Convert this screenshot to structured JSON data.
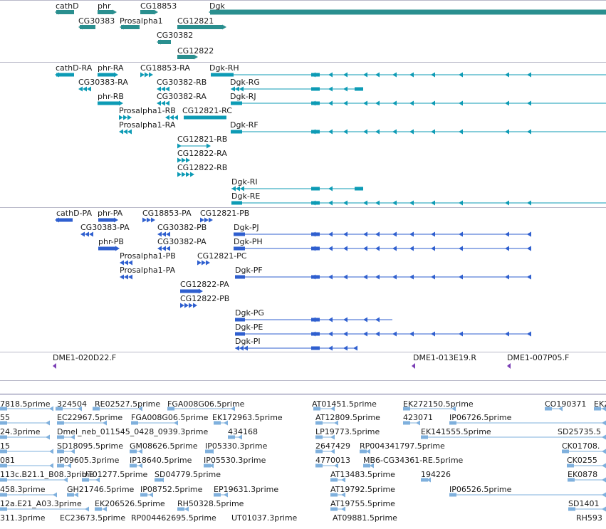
{
  "colors": {
    "gene": "#2a8f8f",
    "transcript": "#0d9bb5",
    "protein": "#2f5fcf",
    "clone": "#7b3fb5",
    "est": "#7fb0dd",
    "separator": "#b9b9c9"
  },
  "genes": [
    "cathD",
    "phr",
    "CG18853",
    "Dgk",
    "CG30383",
    "Prosalpha1",
    "CG12821",
    "CG30382",
    "CG12822"
  ],
  "transcripts": [
    "cathD-RA",
    "phr-RA",
    "CG18853-RA",
    "Dgk-RH",
    "CG30383-RA",
    "CG30382-RB",
    "Dgk-RG",
    "phr-RB",
    "CG30382-RA",
    "Dgk-RJ",
    "Prosalpha1-RB",
    "CG12821-RC",
    "Prosalpha1-RA",
    "Dgk-RF",
    "CG12821-RB",
    "CG12822-RA",
    "CG12822-RB",
    "Dgk-RI",
    "Dgk-RE"
  ],
  "proteins": [
    "cathD-PA",
    "phr-PA",
    "CG18853-PA",
    "CG12821-PB",
    "CG30383-PA",
    "CG30382-PB",
    "Dgk-PJ",
    "phr-PB",
    "CG30382-PA",
    "Dgk-PH",
    "Prosalpha1-PB",
    "CG12821-PC",
    "Prosalpha1-PA",
    "Dgk-PF",
    "CG12822-PA",
    "CG12822-PB",
    "Dgk-PG",
    "Dgk-PE",
    "Dgk-PI"
  ],
  "clones": [
    "DME1-020D22.F",
    "DME1-013E19.R",
    "DME1-007P05.F"
  ],
  "ests": [
    "7818.5prime",
    "324504",
    "RE02527.5prime",
    "FGA008G06.5prime",
    "AT01451.5prime",
    "EK272150.5prime",
    "CO190371",
    "EK2",
    "55",
    "EC22967.5prime",
    "FGA008G06.5prime",
    "EK172963.5prime",
    "AT12809.5prime",
    "423071",
    "IP06726.5prime",
    "24.3prime",
    "Dmel_neb_011545_0428_0939.3prime",
    "434168",
    "LP19773.5prime",
    "EK141555.5prime",
    "SD25735.5",
    "15",
    "SD18095.5prime",
    "GM08626.5prime",
    "IP05330.3prime",
    "2647429",
    "RP004341797.5prime",
    "CK01708.",
    "081",
    "IP09605.3prime",
    "IP18640.5prime",
    "IP05530.3prime",
    "4770013",
    "MB6-CG34361-RE.5prime",
    "CK0255",
    "113c.B21.1_B08.3prime",
    "UT01277.5prime",
    "SD04779.5prime",
    "AT13483.5prime",
    "194226",
    "EK0878",
    "458.3prime",
    "GH21746.5prime",
    "IP08752.5prime",
    "EP19631.3prime",
    "AT19792.5prime",
    "IP06526.5prime",
    "12a.E21_A03.3prime",
    "EK206526.5prime",
    "RH50328.5prime",
    "AT19755.5prime",
    "SD1401",
    "311.3prime",
    "EC23673.5prime",
    "RP004462695.5prime",
    "UT01037.3prime",
    "AT09881.5prime",
    "RH593"
  ]
}
